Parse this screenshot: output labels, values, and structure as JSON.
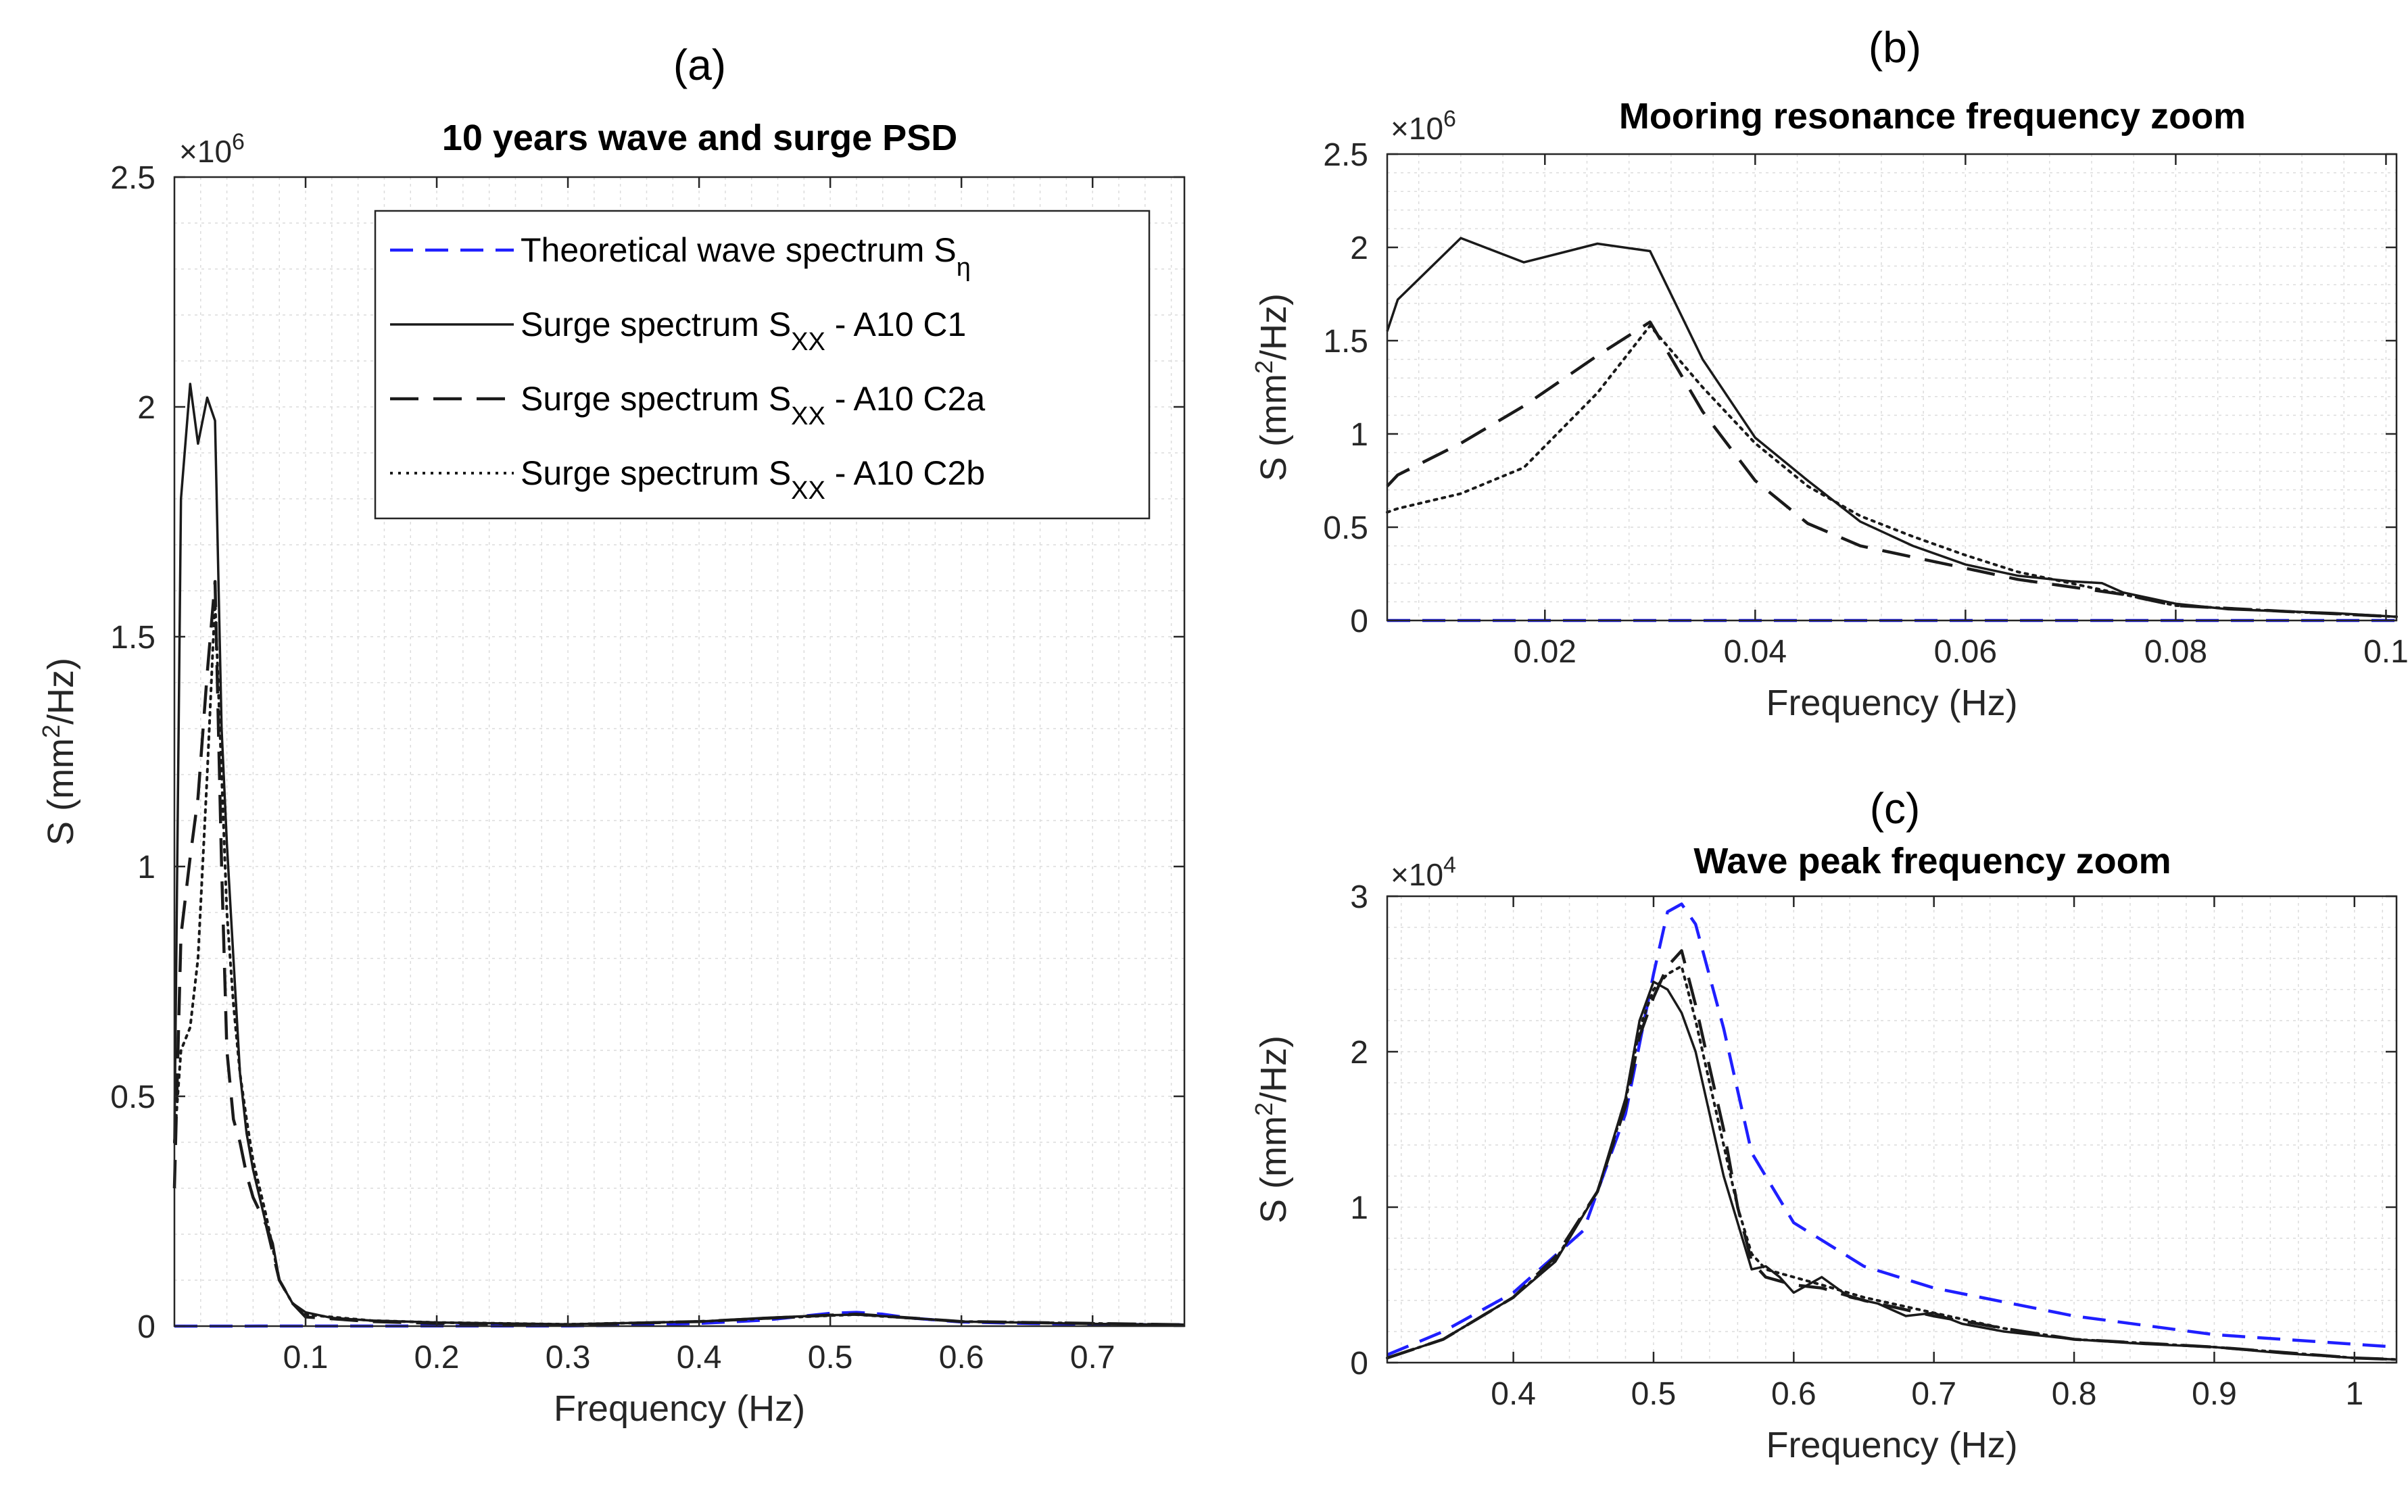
{
  "colors": {
    "theoretical": "#1f1fff",
    "surge": "#1a1a1a",
    "axis": "#262626",
    "grid": "#dcdcdc"
  },
  "chart_data": [
    {
      "panel": "(a)",
      "type": "line",
      "title": "10 years wave and surge PSD",
      "xlabel": "Frequency (Hz)",
      "ylabel": "S (mm²/Hz)",
      "ylabel_parts": [
        "S",
        "(mm",
        "2",
        "/Hz)"
      ],
      "y_multiplier": "×10",
      "y_multiplier_exp": "6",
      "xlim": [
        0,
        0.77
      ],
      "ylim": [
        0,
        2.5
      ],
      "xticks": [
        0.1,
        0.2,
        0.3,
        0.4,
        0.5,
        0.6,
        0.7
      ],
      "xtick_labels": [
        "0.1",
        "0.2",
        "0.3",
        "0.4",
        "0.5",
        "0.6",
        "0.7"
      ],
      "yticks": [
        0,
        0.5,
        1,
        1.5,
        2,
        2.5
      ],
      "ytick_labels": [
        "0",
        "0.5",
        "1",
        "1.5",
        "2",
        "2.5"
      ],
      "legend": [
        {
          "label": "Theoretical wave spectrum S",
          "sub": "η",
          "tail": "",
          "style": "dashed",
          "color": "#1f1fff"
        },
        {
          "label": "Surge spectrum S",
          "sub": "XX",
          "tail": " -   A10 C1",
          "style": "solid",
          "color": "#1a1a1a"
        },
        {
          "label": "Surge spectrum S",
          "sub": "XX",
          "tail": " -   A10 C2a",
          "style": "longdash",
          "color": "#1a1a1a"
        },
        {
          "label": "Surge spectrum S",
          "sub": "XX",
          "tail": " -   A10 C2b",
          "style": "dotted",
          "color": "#1a1a1a"
        }
      ],
      "series": [
        {
          "name": "Theoretical wave spectrum",
          "style": "dashed",
          "x": [
            0,
            0.3,
            0.35,
            0.4,
            0.45,
            0.48,
            0.5,
            0.52,
            0.54,
            0.56,
            0.6,
            0.65,
            0.7,
            0.77
          ],
          "y": [
            0,
            0.0005,
            0.002,
            0.006,
            0.013,
            0.022,
            0.028,
            0.03,
            0.026,
            0.018,
            0.009,
            0.006,
            0.004,
            0.003
          ]
        },
        {
          "name": "Surge A10 C1",
          "style": "solid",
          "x": [
            0,
            0.005,
            0.012,
            0.018,
            0.025,
            0.031,
            0.036,
            0.04,
            0.045,
            0.05,
            0.055,
            0.06,
            0.065,
            0.07,
            0.075,
            0.08,
            0.09,
            0.1,
            0.12,
            0.15,
            0.2,
            0.3,
            0.4,
            0.45,
            0.5,
            0.52,
            0.55,
            0.6,
            0.7,
            0.77
          ],
          "y": [
            0.4,
            1.8,
            2.05,
            1.92,
            2.02,
            1.97,
            1.3,
            1.05,
            0.8,
            0.55,
            0.42,
            0.34,
            0.28,
            0.22,
            0.18,
            0.1,
            0.05,
            0.03,
            0.018,
            0.012,
            0.008,
            0.004,
            0.01,
            0.018,
            0.024,
            0.025,
            0.02,
            0.01,
            0.005,
            0.003
          ]
        },
        {
          "name": "Surge A10 C2a",
          "style": "longdash",
          "x": [
            0,
            0.005,
            0.012,
            0.018,
            0.025,
            0.031,
            0.036,
            0.04,
            0.045,
            0.05,
            0.055,
            0.06,
            0.07,
            0.08,
            0.09,
            0.1,
            0.15,
            0.2,
            0.3,
            0.4,
            0.5,
            0.52,
            0.6,
            0.77
          ],
          "y": [
            0.3,
            0.85,
            1.02,
            1.15,
            1.42,
            1.62,
            1.0,
            0.6,
            0.45,
            0.4,
            0.33,
            0.28,
            0.22,
            0.1,
            0.05,
            0.02,
            0.01,
            0.006,
            0.003,
            0.01,
            0.024,
            0.026,
            0.01,
            0.003
          ]
        },
        {
          "name": "Surge A10 C2b",
          "style": "dotted",
          "x": [
            0,
            0.005,
            0.012,
            0.018,
            0.025,
            0.031,
            0.036,
            0.04,
            0.045,
            0.05,
            0.055,
            0.06,
            0.07,
            0.08,
            0.09,
            0.1,
            0.15,
            0.2,
            0.3,
            0.4,
            0.5,
            0.52,
            0.6,
            0.77
          ],
          "y": [
            0.4,
            0.6,
            0.65,
            0.8,
            1.2,
            1.58,
            1.2,
            0.9,
            0.7,
            0.55,
            0.45,
            0.36,
            0.24,
            0.1,
            0.05,
            0.025,
            0.012,
            0.008,
            0.004,
            0.01,
            0.023,
            0.025,
            0.01,
            0.003
          ]
        }
      ]
    },
    {
      "panel": "(b)",
      "type": "line",
      "title": "Mooring resonance frequency zoom",
      "xlabel": "Frequency (Hz)",
      "ylabel": "S (mm²/Hz)",
      "ylabel_parts": [
        "S",
        "(mm",
        "2",
        "/Hz)"
      ],
      "y_multiplier": "×10",
      "y_multiplier_exp": "6",
      "xlim": [
        0.005,
        0.101
      ],
      "ylim": [
        0,
        2.5
      ],
      "xticks": [
        0.02,
        0.04,
        0.06,
        0.08,
        0.1
      ],
      "xtick_labels": [
        "0.02",
        "0.04",
        "0.06",
        "0.08",
        "0.1"
      ],
      "yticks": [
        0,
        0.5,
        1,
        1.5,
        2,
        2.5
      ],
      "ytick_labels": [
        "0",
        "0.5",
        "1",
        "1.5",
        "2",
        "2.5"
      ],
      "series": [
        {
          "name": "Theoretical wave spectrum",
          "style": "dashed",
          "x": [
            0.005,
            0.101
          ],
          "y": [
            0,
            0
          ]
        },
        {
          "name": "Surge A10 C1",
          "style": "solid",
          "x": [
            0.005,
            0.006,
            0.012,
            0.018,
            0.025,
            0.03,
            0.035,
            0.04,
            0.045,
            0.05,
            0.055,
            0.06,
            0.065,
            0.07,
            0.073,
            0.075,
            0.08,
            0.085,
            0.09,
            0.095,
            0.101
          ],
          "y": [
            1.55,
            1.72,
            2.05,
            1.92,
            2.02,
            1.98,
            1.4,
            0.98,
            0.75,
            0.53,
            0.4,
            0.3,
            0.24,
            0.21,
            0.2,
            0.15,
            0.09,
            0.06,
            0.05,
            0.04,
            0.02
          ]
        },
        {
          "name": "Surge A10 C2a",
          "style": "longdash",
          "x": [
            0.005,
            0.006,
            0.012,
            0.018,
            0.025,
            0.03,
            0.035,
            0.04,
            0.045,
            0.05,
            0.055,
            0.06,
            0.065,
            0.07,
            0.075,
            0.08,
            0.09,
            0.101
          ],
          "y": [
            0.72,
            0.78,
            0.95,
            1.15,
            1.42,
            1.6,
            1.12,
            0.75,
            0.52,
            0.4,
            0.34,
            0.28,
            0.22,
            0.18,
            0.14,
            0.08,
            0.05,
            0.02
          ]
        },
        {
          "name": "Surge A10 C2b",
          "style": "dotted",
          "x": [
            0.005,
            0.006,
            0.012,
            0.018,
            0.025,
            0.03,
            0.035,
            0.04,
            0.045,
            0.05,
            0.055,
            0.06,
            0.065,
            0.07,
            0.075,
            0.08,
            0.09,
            0.101
          ],
          "y": [
            0.58,
            0.6,
            0.68,
            0.82,
            1.22,
            1.58,
            1.25,
            0.95,
            0.72,
            0.56,
            0.45,
            0.35,
            0.26,
            0.2,
            0.14,
            0.08,
            0.05,
            0.02
          ]
        }
      ]
    },
    {
      "panel": "(c)",
      "type": "line",
      "title": "Wave peak frequency zoom",
      "xlabel": "Frequency (Hz)",
      "ylabel": "S (mm²/Hz)",
      "ylabel_parts": [
        "S",
        "(mm",
        "2",
        "/Hz)"
      ],
      "y_multiplier": "×10",
      "y_multiplier_exp": "4",
      "xlim": [
        0.31,
        1.03
      ],
      "ylim": [
        0,
        3
      ],
      "xticks": [
        0.4,
        0.5,
        0.6,
        0.7,
        0.8,
        0.9,
        1
      ],
      "xtick_labels": [
        "0.4",
        "0.5",
        "0.6",
        "0.7",
        "0.8",
        "0.9",
        "1"
      ],
      "yticks": [
        0,
        1,
        2,
        3
      ],
      "ytick_labels": [
        "0",
        "1",
        "2",
        "3"
      ],
      "series": [
        {
          "name": "Theoretical wave spectrum",
          "style": "dashed",
          "x": [
            0.31,
            0.35,
            0.4,
            0.45,
            0.48,
            0.5,
            0.51,
            0.52,
            0.53,
            0.55,
            0.57,
            0.6,
            0.65,
            0.7,
            0.8,
            0.9,
            1.03
          ],
          "y": [
            0.05,
            0.2,
            0.45,
            0.85,
            1.6,
            2.5,
            2.9,
            2.95,
            2.82,
            2.15,
            1.35,
            0.9,
            0.62,
            0.48,
            0.3,
            0.18,
            0.1
          ]
        },
        {
          "name": "Surge A10 C1",
          "style": "solid",
          "x": [
            0.31,
            0.35,
            0.4,
            0.43,
            0.46,
            0.48,
            0.49,
            0.5,
            0.51,
            0.52,
            0.53,
            0.54,
            0.55,
            0.56,
            0.57,
            0.58,
            0.59,
            0.6,
            0.61,
            0.62,
            0.64,
            0.66,
            0.68,
            0.7,
            0.72,
            0.75,
            0.8,
            0.85,
            0.9,
            0.95,
            1.0,
            1.03
          ],
          "y": [
            0.03,
            0.15,
            0.42,
            0.65,
            1.1,
            1.7,
            2.2,
            2.45,
            2.4,
            2.25,
            2.0,
            1.6,
            1.2,
            0.9,
            0.6,
            0.62,
            0.55,
            0.45,
            0.5,
            0.55,
            0.42,
            0.38,
            0.3,
            0.32,
            0.25,
            0.2,
            0.15,
            0.12,
            0.1,
            0.06,
            0.03,
            0.02
          ]
        },
        {
          "name": "Surge A10 C2a",
          "style": "longdash",
          "x": [
            0.31,
            0.35,
            0.4,
            0.43,
            0.46,
            0.48,
            0.49,
            0.5,
            0.51,
            0.52,
            0.53,
            0.54,
            0.55,
            0.56,
            0.57,
            0.58,
            0.6,
            0.62,
            0.65,
            0.7,
            0.75,
            0.8,
            0.9,
            1.0,
            1.03
          ],
          "y": [
            0.03,
            0.15,
            0.42,
            0.68,
            1.1,
            1.65,
            2.1,
            2.35,
            2.55,
            2.65,
            2.3,
            1.9,
            1.5,
            1.0,
            0.65,
            0.55,
            0.5,
            0.48,
            0.4,
            0.3,
            0.22,
            0.15,
            0.1,
            0.03,
            0.02
          ]
        },
        {
          "name": "Surge A10 C2b",
          "style": "dotted",
          "x": [
            0.31,
            0.35,
            0.4,
            0.43,
            0.46,
            0.48,
            0.49,
            0.5,
            0.51,
            0.52,
            0.53,
            0.54,
            0.55,
            0.56,
            0.57,
            0.58,
            0.6,
            0.62,
            0.65,
            0.7,
            0.75,
            0.8,
            0.9,
            1.0,
            1.03
          ],
          "y": [
            0.03,
            0.15,
            0.42,
            0.66,
            1.1,
            1.68,
            2.15,
            2.4,
            2.5,
            2.55,
            2.2,
            1.8,
            1.4,
            1.0,
            0.7,
            0.6,
            0.55,
            0.5,
            0.42,
            0.32,
            0.22,
            0.15,
            0.1,
            0.03,
            0.02
          ]
        }
      ]
    }
  ]
}
